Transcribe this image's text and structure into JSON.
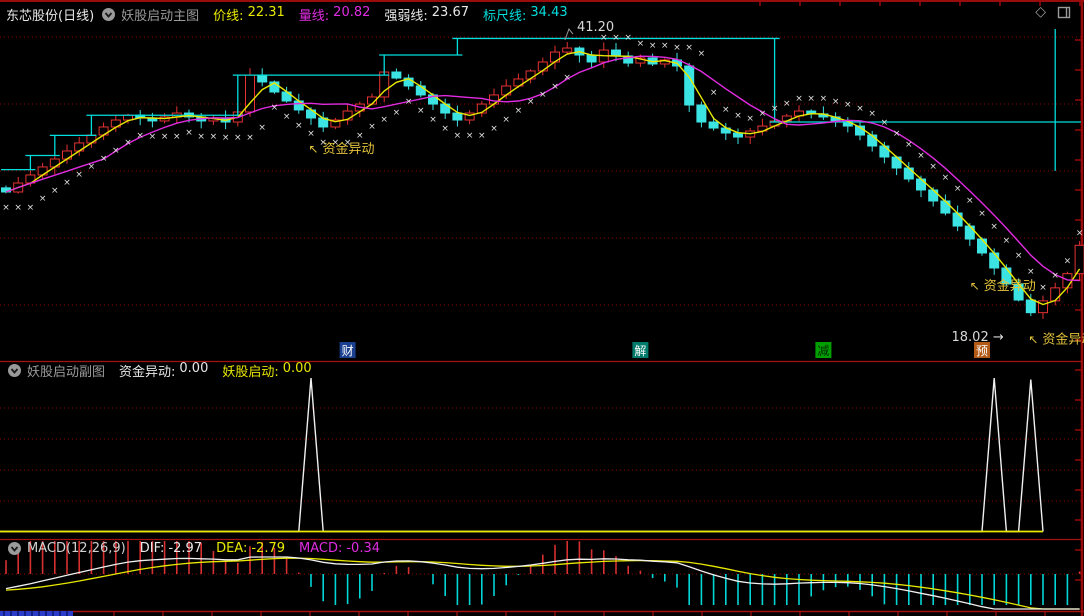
{
  "colors": {
    "bg": "#000000",
    "border": "#9a0b0b",
    "grid": "#8b0000",
    "divider": "#a51212",
    "candle_up": "#e63232",
    "candle_down": "#3ce3e3",
    "price_line": "#e8e800",
    "volume_line": "#e02ce0",
    "strength_line": "#e0e0e0",
    "ruler_line": "#00dede",
    "hist_pos": "#d63030",
    "hist_neg": "#00d6d6",
    "dif": "#f0f0f0",
    "dea": "#e8e800",
    "annotation": "#e2c23c",
    "scrollbar": "#2a3cc8"
  },
  "header": {
    "symbol": "东芯股份(日线)",
    "indicator": "妖股启动主图",
    "diamond_icon": "◇",
    "fields": [
      {
        "label": "价线:",
        "value": "22.31",
        "color": "#e8e800"
      },
      {
        "label": "量线:",
        "value": "20.82",
        "color": "#e02ce0"
      },
      {
        "label": "强弱线:",
        "value": "23.67",
        "color": "#e8e8e8"
      },
      {
        "label": "标尺线:",
        "value": "34.43",
        "color": "#00dede"
      }
    ]
  },
  "sub_header": {
    "indicator": "妖股启动副图",
    "fields": [
      {
        "label": "资金异动:",
        "value": "0.00",
        "color": "#e8e8e8"
      },
      {
        "label": "妖股启动:",
        "value": "0.00",
        "color": "#e8e800"
      }
    ]
  },
  "macd_header": {
    "indicator": "MACD(12,26,9)",
    "fields": [
      {
        "label": "DIF:",
        "value": "-2.97",
        "color": "#e8e8e8"
      },
      {
        "label": "DEA:",
        "value": "-2.79",
        "color": "#e8e800"
      },
      {
        "label": "MACD:",
        "value": "-0.34",
        "color": "#e02ce0"
      }
    ]
  },
  "chart_data": {
    "type": "candlestick",
    "title": "东芯股份(日线)",
    "price_panel": {
      "ylim": [
        16.0,
        42.2
      ],
      "closes": [
        28.51,
        29.27,
        29.95,
        30.63,
        31.3,
        31.98,
        32.66,
        33.33,
        34.01,
        34.6,
        35.02,
        34.77,
        34.52,
        34.86,
        35.19,
        34.86,
        34.52,
        34.77,
        34.43,
        35.28,
        38.41,
        37.82,
        36.97,
        36.21,
        35.45,
        34.77,
        34.01,
        34.6,
        35.36,
        35.95,
        36.55,
        38.66,
        38.15,
        37.48,
        36.72,
        35.95,
        35.19,
        34.6,
        35.19,
        35.95,
        36.72,
        37.48,
        38.07,
        38.75,
        39.51,
        40.35,
        40.69,
        40.1,
        39.51,
        40.52,
        40.02,
        39.42,
        39.85,
        39.34,
        39.68,
        39.17,
        35.87,
        34.43,
        33.92,
        33.5,
        33.16,
        33.67,
        34.09,
        34.52,
        34.94,
        35.36,
        35.11,
        34.86,
        34.52,
        34.09,
        33.33,
        32.4,
        31.47,
        30.54,
        29.61,
        28.68,
        27.75,
        26.73,
        25.63,
        24.53,
        23.35,
        22.08,
        20.73,
        19.37,
        18.3,
        19.3,
        20.4,
        21.6,
        24.0
      ],
      "key_high": {
        "index": 46,
        "price": 41.2
      },
      "key_low": {
        "index": 84,
        "price": 18.02
      },
      "sar": {
        "up_until": 46,
        "down_from": 49
      },
      "ruler_steps": [
        {
          "from": 0,
          "to": 2,
          "price": 30.4
        },
        {
          "from": 2,
          "to": 4,
          "price": 31.6
        },
        {
          "from": 4,
          "to": 7,
          "price": 33.3
        },
        {
          "from": 7,
          "to": 19,
          "price": 35.0
        },
        {
          "from": 19,
          "to": 31,
          "price": 38.4
        },
        {
          "from": 31,
          "to": 37,
          "price": 40.1
        },
        {
          "from": 37,
          "to": 63,
          "price": 41.5
        },
        {
          "from": 63,
          "to": 88.5,
          "price": 34.43
        }
      ],
      "ruler_jump": {
        "index": 86,
        "from_price": 42.3,
        "to_price": 30.3
      },
      "annotations": [
        {
          "i": 24.8,
          "p": 31.8,
          "text": "资金异动",
          "arrow": "↖",
          "color": "#e2c23c"
        },
        {
          "i": 46.8,
          "p": 42.13,
          "text": "41.20",
          "color": "#d8d8d8",
          "leader": true
        },
        {
          "i": 79.0,
          "p": 20.2,
          "text": "资金异动",
          "arrow": "↖",
          "color": "#e2c23c"
        },
        {
          "i": 77.5,
          "p": 15.9,
          "text": "18.02 →",
          "color": "#d8d8d8"
        },
        {
          "i": 83.8,
          "p": 15.7,
          "text": "资金异动",
          "arrow": "↖",
          "color": "#e2c23c"
        }
      ],
      "event_markers": [
        {
          "index": 28,
          "label": "财",
          "bg": "#1b3f8f",
          "fg": "#ffffff"
        },
        {
          "index": 52,
          "label": "解",
          "bg": "#007a6a",
          "fg": "#ffffff"
        },
        {
          "index": 67,
          "label": "减",
          "bg": "#00a000",
          "fg": "#002a00"
        },
        {
          "index": 80,
          "label": "预",
          "bg": "#b35a16",
          "fg": "#ffffff"
        }
      ]
    },
    "signal_panel": {
      "ylim": [
        0,
        5.2
      ],
      "grid_values": [
        1,
        2,
        3,
        4
      ],
      "last_index": 85,
      "series": [
        {
          "name": "资金异动",
          "value_now": 0.0,
          "color": "#f0f0f0",
          "spikes": [
            {
              "index": 25,
              "value": 4.95
            },
            {
              "index": 81,
              "value": 4.95
            },
            {
              "index": 84,
              "value": 4.9
            }
          ]
        },
        {
          "name": "妖股启动",
          "value_now": 0.0,
          "color": "#e8e800",
          "spikes": []
        }
      ]
    },
    "macd_panel": {
      "params": [
        12,
        26,
        9
      ],
      "dif_now": -2.97,
      "dea_now": -2.79,
      "macd_now": -0.34
    }
  }
}
